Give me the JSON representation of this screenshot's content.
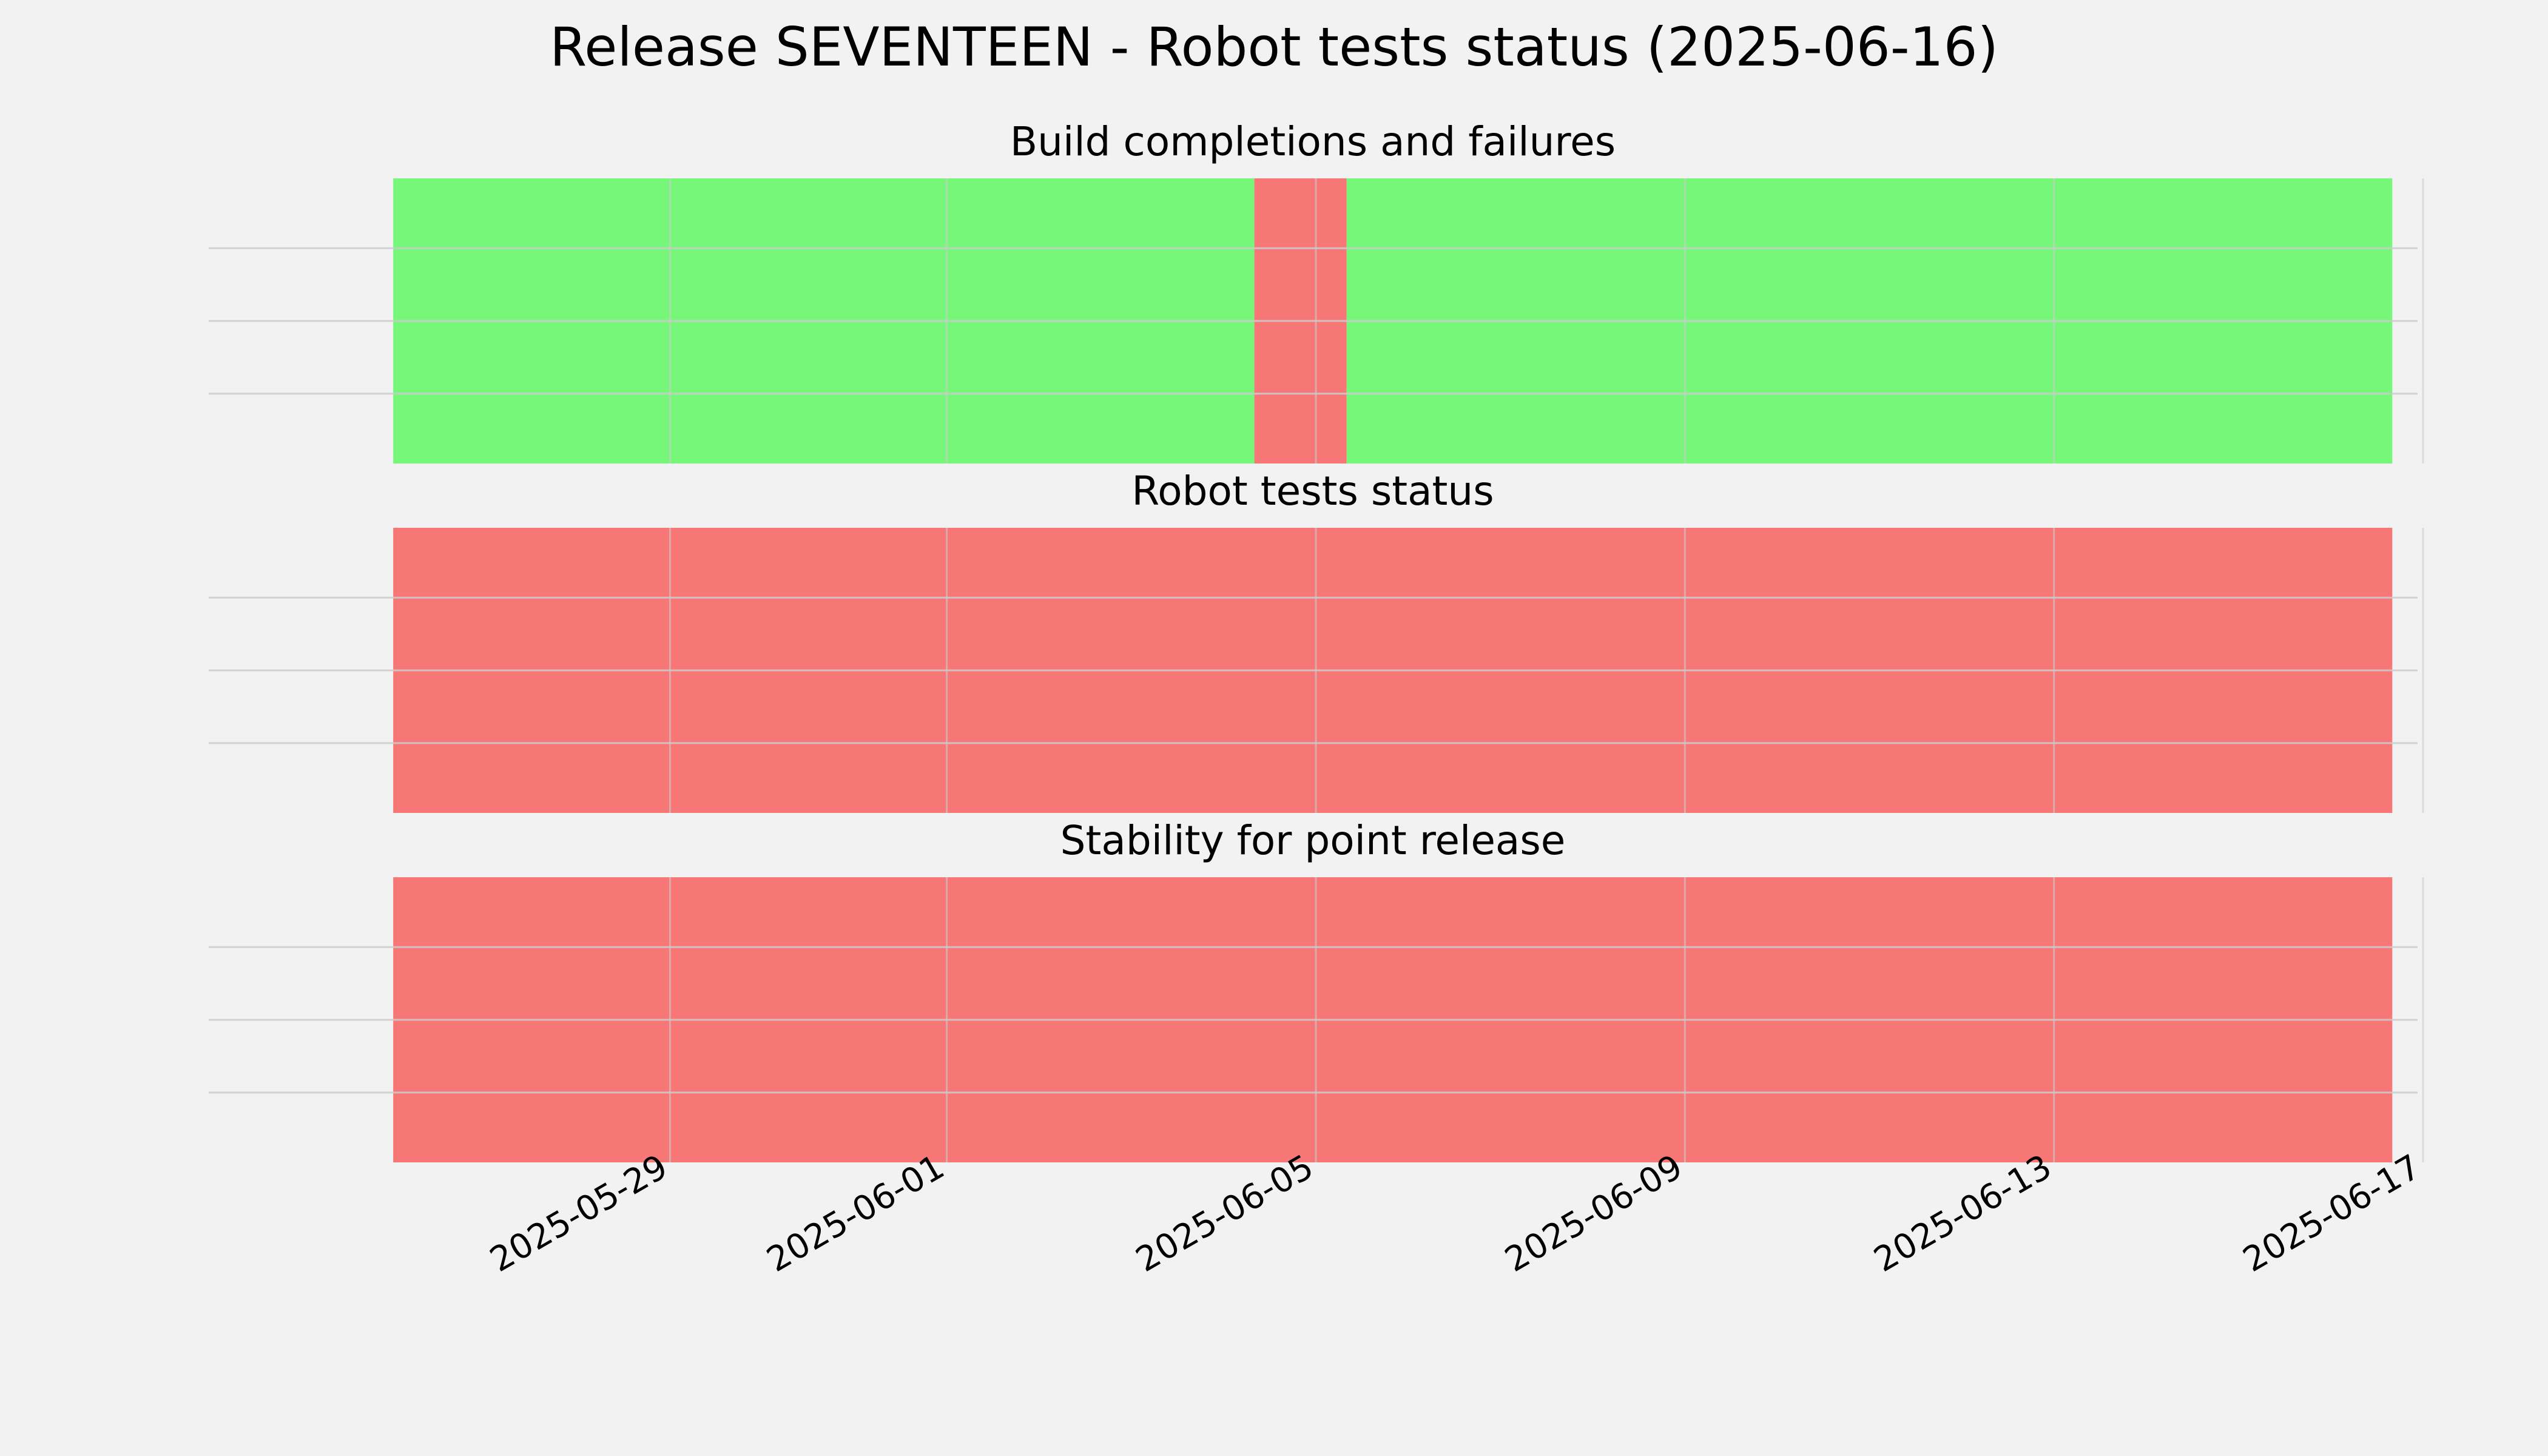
{
  "chart_data": {
    "type": "timeline",
    "title": "Release SEVENTEEN - Robot tests status (2025-06-16)",
    "x_range": [
      "2025-05-24",
      "2025-06-17"
    ],
    "x_ticks": [
      "2025-05-29",
      "2025-06-01",
      "2025-06-05",
      "2025-06-09",
      "2025-06-13",
      "2025-06-17"
    ],
    "grid": true,
    "panels": [
      {
        "title": "Build completions and failures",
        "segments": [
          {
            "start": "2025-05-26",
            "end": "2025-06-04T08:00",
            "status": "pass"
          },
          {
            "start": "2025-06-04T08:00",
            "end": "2025-06-05T08:00",
            "status": "fail"
          },
          {
            "start": "2025-06-05T08:00",
            "end": "2025-06-16T16:00",
            "status": "pass"
          }
        ]
      },
      {
        "title": "Robot tests status",
        "segments": [
          {
            "start": "2025-05-26",
            "end": "2025-06-16T16:00",
            "status": "fail"
          }
        ]
      },
      {
        "title": "Stability for point release",
        "segments": [
          {
            "start": "2025-05-26",
            "end": "2025-06-16T16:00",
            "status": "fail"
          }
        ]
      }
    ],
    "colors": {
      "pass": "#77f77a",
      "fail": "#f77777",
      "grid": "#cbcbcb",
      "background": "#f2f2f2"
    }
  }
}
